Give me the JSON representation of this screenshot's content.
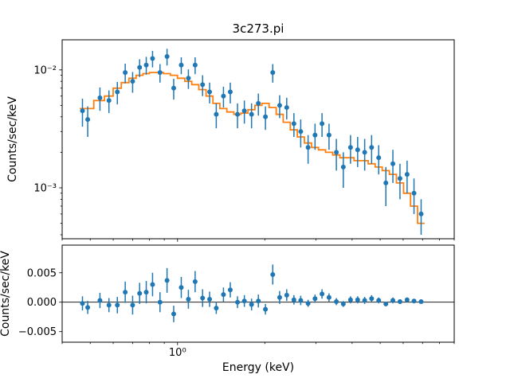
{
  "figure": {
    "title": "3c273.pi",
    "background": "#ffffff",
    "data_color": "#1f77b4",
    "model_color": "#ff7f0e",
    "axis_color": "#000000"
  },
  "chart_data": {
    "type": "scatter",
    "subtype": "errorbar-with-step-model-and-residuals",
    "title": "3c273.pi",
    "xlabel": "Energy (keV)",
    "xscale": "log",
    "xlim": [
      0.4,
      9
    ],
    "xtick_values": [
      1
    ],
    "xtick_labels": [
      "10⁰"
    ],
    "xminor_ticks": [
      0.4,
      0.5,
      0.6,
      0.7,
      0.8,
      0.9,
      2,
      3,
      4,
      5,
      6,
      7,
      8,
      9
    ],
    "legend": "off",
    "grid": "off",
    "energies": [
      0.47,
      0.49,
      0.54,
      0.58,
      0.62,
      0.66,
      0.7,
      0.74,
      0.78,
      0.82,
      0.87,
      0.92,
      0.97,
      1.03,
      1.09,
      1.15,
      1.22,
      1.29,
      1.36,
      1.44,
      1.52,
      1.61,
      1.7,
      1.8,
      1.9,
      2.01,
      2.13,
      2.25,
      2.38,
      2.52,
      2.66,
      2.82,
      2.98,
      3.15,
      3.33,
      3.53,
      3.73,
      3.95,
      4.18,
      4.42,
      4.67,
      4.94,
      5.23,
      5.53,
      5.85,
      6.19,
      6.54,
      6.92
    ],
    "counts": [
      0.0045,
      0.0038,
      0.0058,
      0.0055,
      0.0065,
      0.0095,
      0.008,
      0.0105,
      0.011,
      0.0125,
      0.0095,
      0.013,
      0.007,
      0.011,
      0.0085,
      0.011,
      0.0075,
      0.0065,
      0.0042,
      0.006,
      0.0065,
      0.0042,
      0.0045,
      0.0042,
      0.0052,
      0.004,
      0.0095,
      0.005,
      0.0048,
      0.0035,
      0.003,
      0.0022,
      0.0028,
      0.0035,
      0.0028,
      0.002,
      0.0015,
      0.0022,
      0.0021,
      0.002,
      0.0022,
      0.0018,
      0.0011,
      0.0016,
      0.0012,
      0.0013,
      0.0009,
      0.0006
    ],
    "errors": [
      0.0012,
      0.0011,
      0.0013,
      0.0012,
      0.0014,
      0.0018,
      0.0016,
      0.0018,
      0.0019,
      0.002,
      0.0017,
      0.0021,
      0.0014,
      0.0018,
      0.0016,
      0.0018,
      0.0015,
      0.0013,
      0.001,
      0.0012,
      0.0013,
      0.001,
      0.001,
      0.001,
      0.0011,
      0.0009,
      0.0017,
      0.0011,
      0.001,
      0.0008,
      0.0008,
      0.0006,
      0.0007,
      0.0008,
      0.0007,
      0.0006,
      0.0005,
      0.0006,
      0.0006,
      0.0006,
      0.0006,
      0.0005,
      0.0004,
      0.0005,
      0.0004,
      0.0004,
      0.0003,
      0.0002
    ],
    "model": [
      0.0047,
      0.0047,
      0.0055,
      0.006,
      0.007,
      0.0078,
      0.0085,
      0.009,
      0.0093,
      0.0095,
      0.0095,
      0.0093,
      0.009,
      0.0085,
      0.008,
      0.0075,
      0.0068,
      0.006,
      0.0052,
      0.0047,
      0.0044,
      0.0042,
      0.0043,
      0.0046,
      0.005,
      0.0052,
      0.0048,
      0.0042,
      0.0036,
      0.0031,
      0.0027,
      0.0024,
      0.0022,
      0.0021,
      0.002,
      0.0019,
      0.0018,
      0.0018,
      0.0017,
      0.0017,
      0.0016,
      0.0015,
      0.0014,
      0.0013,
      0.0011,
      0.0009,
      0.0007,
      0.0005
    ],
    "panels": [
      {
        "name": "fit",
        "ylabel": "Counts/sec/keV",
        "yscale": "log",
        "ylim": [
          0.00037,
          0.018
        ],
        "ytick_values": [
          0.001,
          0.01
        ],
        "ytick_labels": [
          "10⁻³",
          "10⁻²"
        ],
        "yminor_ticks": [
          0.0004,
          0.0005,
          0.0006,
          0.0007,
          0.0008,
          0.0009,
          0.002,
          0.003,
          0.004,
          0.005,
          0.006,
          0.007,
          0.008,
          0.009
        ],
        "series": [
          "data (errorbar)",
          "model (step)"
        ]
      },
      {
        "name": "residuals",
        "ylabel": "Counts/sec/keV",
        "yscale": "linear",
        "ylim": [
          -0.0068,
          0.0097
        ],
        "ytick_values": [
          -0.005,
          0,
          0.005
        ],
        "ytick_labels": [
          "−0.005",
          "0.000",
          "0.005"
        ],
        "zero_line": true,
        "derived": "counts minus model, same errors",
        "series": [
          "residuals (errorbar)"
        ]
      }
    ]
  }
}
